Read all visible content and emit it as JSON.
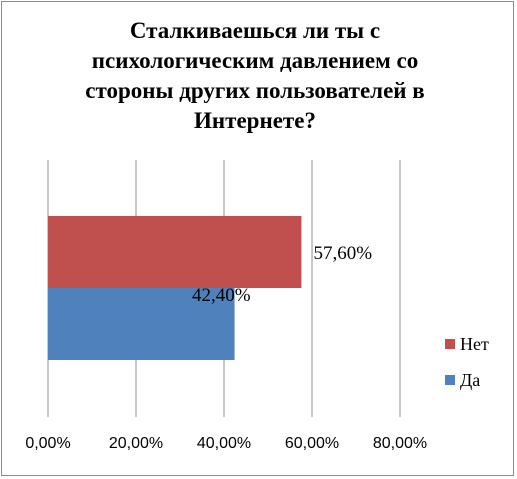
{
  "chart_data": {
    "type": "bar",
    "orientation": "horizontal",
    "title_lines": [
      "Сталкиваешься  ли ты с",
      "психологическим  давлением со",
      "стороны других пользователей  в",
      "Интернете?"
    ],
    "categories": [
      "Нет",
      "Да"
    ],
    "values": [
      0.576,
      0.424
    ],
    "value_labels": [
      "57,60%",
      "42,40%"
    ],
    "colors": [
      "#c0504d",
      "#4f81bd"
    ],
    "xlim": [
      0,
      0.8
    ],
    "ticks": [
      0,
      0.2,
      0.4,
      0.6,
      0.8
    ],
    "tick_labels": [
      "0,00%",
      "20,00%",
      "40,00%",
      "60,00%",
      "80,00%"
    ],
    "grid": "vertical",
    "legend": {
      "placement": "right",
      "items": [
        {
          "name": "Нет",
          "color": "#c0504d"
        },
        {
          "name": "Да",
          "color": "#4f81bd"
        }
      ]
    }
  }
}
